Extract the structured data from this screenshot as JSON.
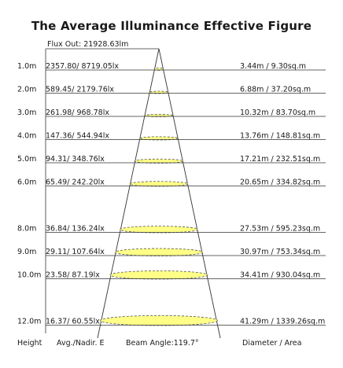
{
  "title": "The Average Illuminance Effective Figure",
  "flux_out": "Flux Out: 21928.63lm",
  "footer": {
    "height": "Height",
    "avg": "Avg./Nadir. E",
    "beam": "Beam Angle:119.7°",
    "diam": "Diameter / Area"
  },
  "rows": [
    {
      "height": 1.0,
      "height_label": "1.0m",
      "lux": "2357.80/ 8719.05lx",
      "diam": "3.44m / 9.30sq.m"
    },
    {
      "height": 2.0,
      "height_label": "2.0m",
      "lux": "589.45/ 2179.76lx",
      "diam": "6.88m / 37.20sq.m"
    },
    {
      "height": 3.0,
      "height_label": "3.0m",
      "lux": "261.98/ 968.78lx",
      "diam": "10.32m / 83.70sq.m"
    },
    {
      "height": 4.0,
      "height_label": "4.0m",
      "lux": "147.36/ 544.94lx",
      "diam": "13.76m / 148.81sq.m"
    },
    {
      "height": 5.0,
      "height_label": "5.0m",
      "lux": "94.31/ 348.76lx",
      "diam": "17.21m / 232.51sq.m"
    },
    {
      "height": 6.0,
      "height_label": "6.0m",
      "lux": "65.49/ 242.20lx",
      "diam": "20.65m / 334.82sq.m"
    },
    {
      "height": 8.0,
      "height_label": "8.0m",
      "lux": "36.84/ 136.24lx",
      "diam": "27.53m / 595.23sq.m"
    },
    {
      "height": 9.0,
      "height_label": "9.0m",
      "lux": "29.11/ 107.64lx",
      "diam": "30.97m / 753.34sq.m"
    },
    {
      "height": 10.0,
      "height_label": "10.0m",
      "lux": "23.58/ 87.19lx",
      "diam": "34.41m / 930.04sq.m"
    },
    {
      "height": 12.0,
      "height_label": "12.0m",
      "lux": "16.37/ 60.55lx",
      "diam": "41.29m / 1339.26sq.m"
    }
  ],
  "colors": {
    "spot_fill": "#ffff88",
    "spot_stroke": "#555555",
    "line": "#333333"
  }
}
